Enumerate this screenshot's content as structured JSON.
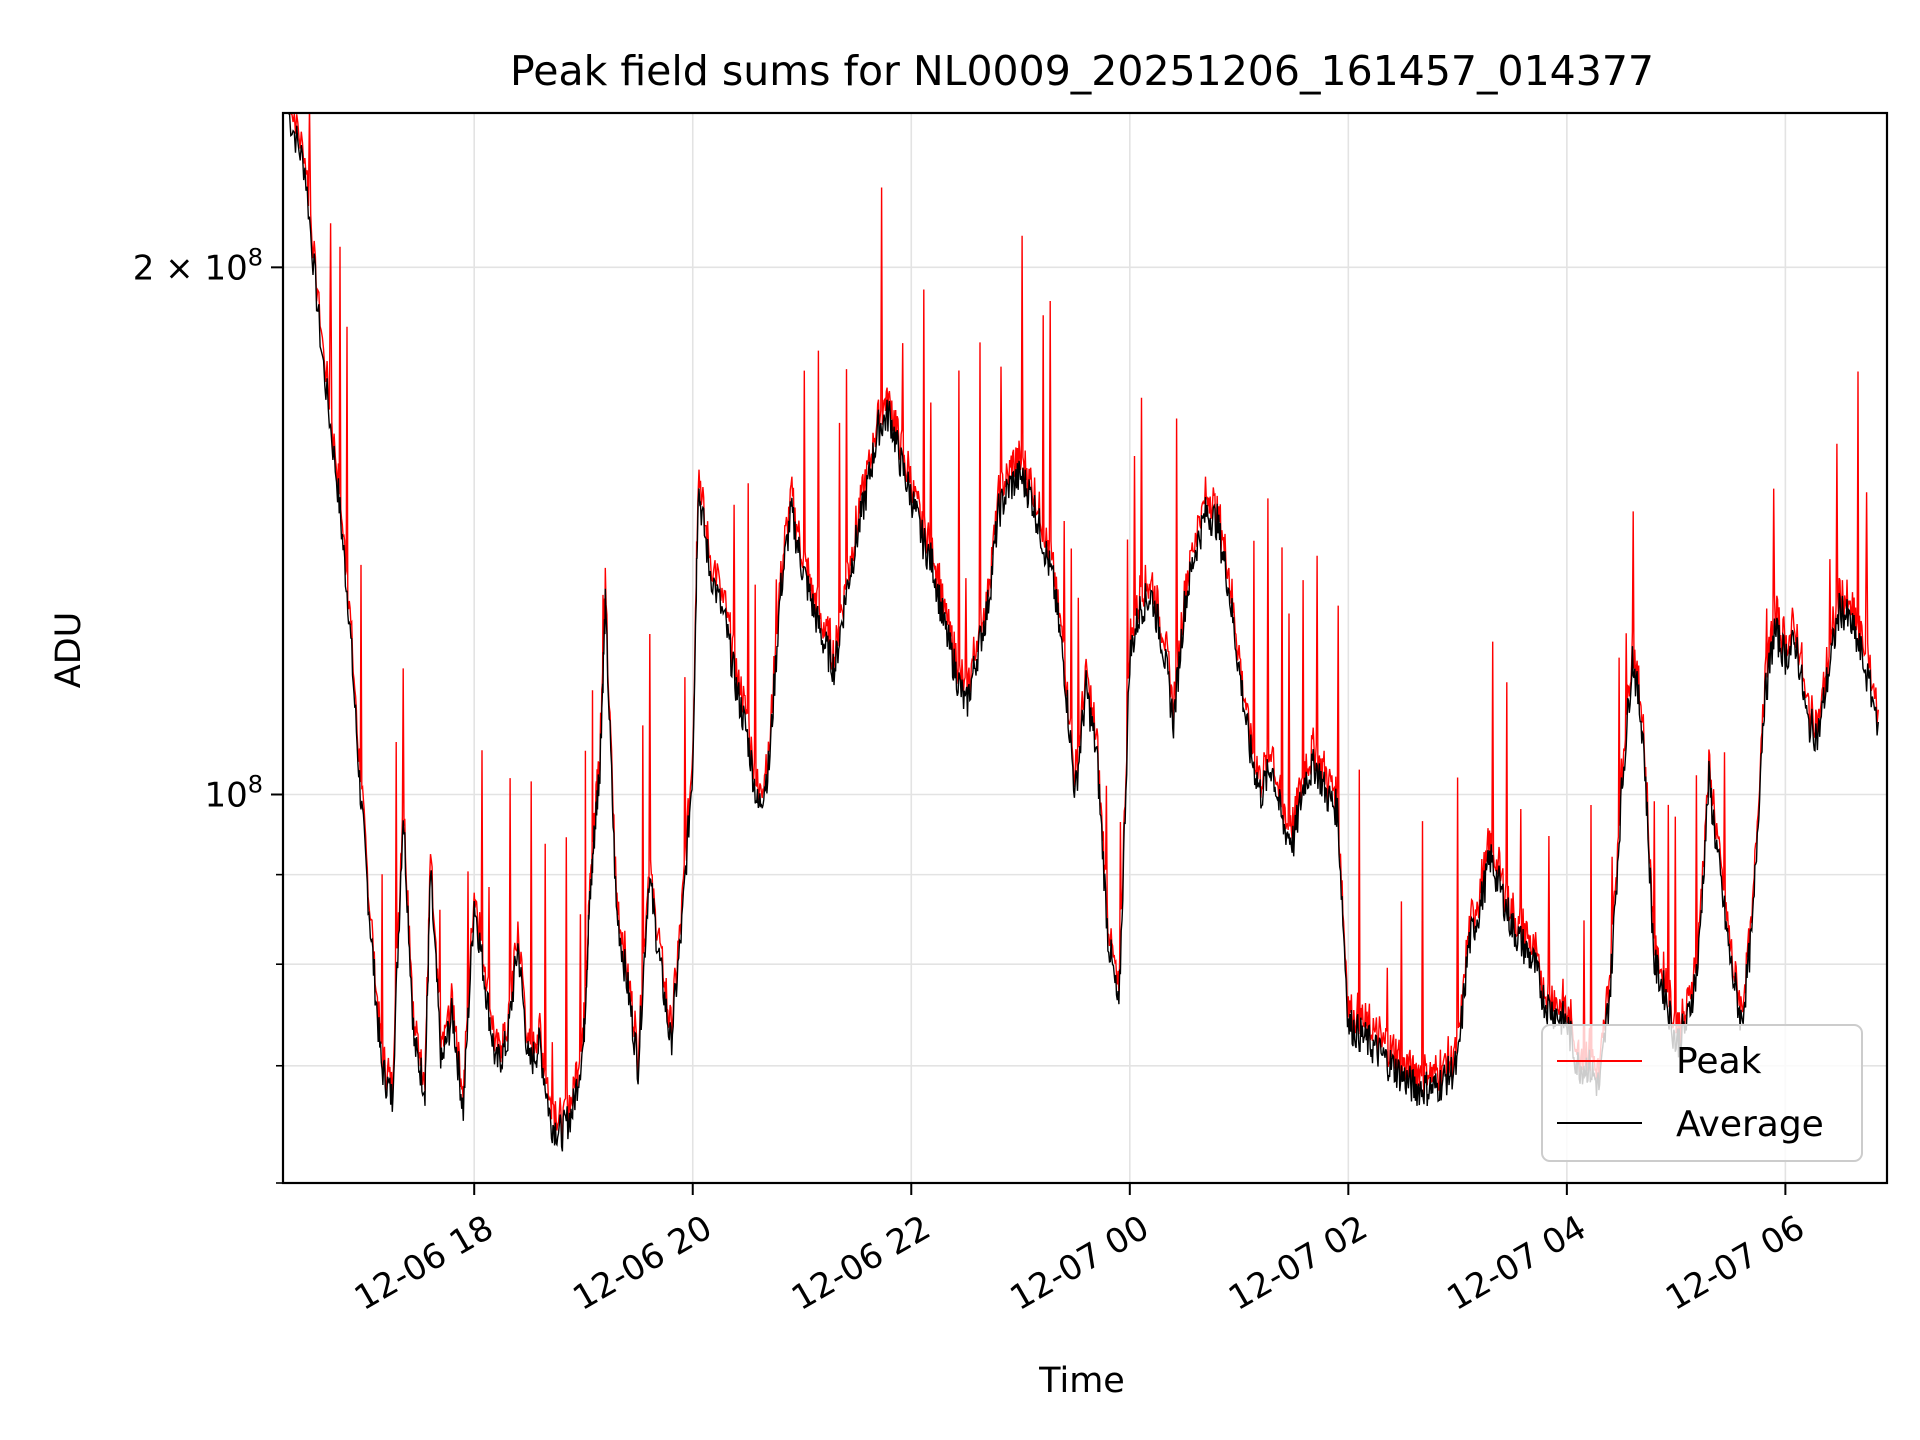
{
  "chart_data": {
    "type": "line",
    "title": "Peak field sums for NL0009_20251206_161457_014377",
    "xlabel": "Time",
    "ylabel": "ADU",
    "x_tick_labels": [
      "12-06 18",
      "12-06 20",
      "12-06 22",
      "12-07 00",
      "12-07 02",
      "12-07 04",
      "12-07 06"
    ],
    "x_tick_hours": [
      18,
      20,
      22,
      24,
      26,
      28,
      30
    ],
    "xlim_hours": [
      16.25,
      30.93
    ],
    "y_scale": "log",
    "ylim": [
      60000000,
      245000000
    ],
    "y_major_ticks": [
      {
        "value": 100000000,
        "label_base": "10",
        "label_exp": "8"
      },
      {
        "value": 200000000,
        "label_base": "2 × 10",
        "label_exp": "8"
      }
    ],
    "y_minor_ticks": [
      60000000,
      70000000,
      80000000,
      90000000
    ],
    "grid": true,
    "legend_position": "lower right",
    "series": [
      {
        "name": "Peak",
        "color": "#ff0000",
        "x_hours": [
          16.3,
          16.45,
          16.6,
          16.75,
          16.85,
          16.95,
          17.05,
          17.15,
          17.25,
          17.35,
          17.45,
          17.55,
          17.6,
          17.7,
          17.8,
          17.9,
          18.0,
          18.1,
          18.2,
          18.3,
          18.4,
          18.5,
          18.6,
          18.7,
          18.8,
          18.9,
          19.0,
          19.05,
          19.1,
          19.15,
          19.2,
          19.3,
          19.4,
          19.5,
          19.6,
          19.7,
          19.8,
          19.9,
          20.0,
          20.05,
          20.15,
          20.3,
          20.4,
          20.5,
          20.6,
          20.7,
          20.8,
          20.9,
          21.0,
          21.1,
          21.2,
          21.3,
          21.4,
          21.5,
          21.6,
          21.7,
          21.8,
          21.9,
          22.0,
          22.1,
          22.2,
          22.3,
          22.4,
          22.5,
          22.6,
          22.7,
          22.8,
          22.9,
          23.0,
          23.1,
          23.2,
          23.3,
          23.4,
          23.5,
          23.6,
          23.7,
          23.8,
          23.9,
          24.0,
          24.1,
          24.2,
          24.3,
          24.4,
          24.5,
          24.6,
          24.7,
          24.8,
          24.9,
          25.0,
          25.1,
          25.2,
          25.3,
          25.4,
          25.5,
          25.6,
          25.7,
          25.8,
          25.9,
          26.0,
          26.1,
          26.2,
          26.3,
          26.4,
          26.5,
          26.6,
          26.7,
          26.8,
          26.9,
          27.0,
          27.1,
          27.2,
          27.3,
          27.4,
          27.5,
          27.6,
          27.7,
          27.8,
          27.9,
          28.0,
          28.1,
          28.2,
          28.3,
          28.4,
          28.5,
          28.6,
          28.7,
          28.8,
          28.9,
          29.0,
          29.1,
          29.2,
          29.3,
          29.4,
          29.5,
          29.6,
          29.7,
          29.8,
          29.9,
          30.0,
          30.1,
          30.2,
          30.3,
          30.4,
          30.5,
          30.6,
          30.7,
          30.85
        ],
        "values": [
          245000000,
          228000000,
          180000000,
          150000000,
          128000000,
          102000000,
          84000000,
          70000000,
          67000000,
          98000000,
          72000000,
          68000000,
          90000000,
          70000000,
          75000000,
          66000000,
          87000000,
          78000000,
          70000000,
          72000000,
          82000000,
          70000000,
          72000000,
          65000000,
          64000000,
          66000000,
          72000000,
          85000000,
          95000000,
          104000000,
          128000000,
          86000000,
          78000000,
          70000000,
          90000000,
          80000000,
          72000000,
          84000000,
          104000000,
          150000000,
          135000000,
          125000000,
          115000000,
          108000000,
          98000000,
          104000000,
          130000000,
          145000000,
          135000000,
          128000000,
          122000000,
          118000000,
          130000000,
          140000000,
          150000000,
          162000000,
          165000000,
          155000000,
          148000000,
          140000000,
          135000000,
          125000000,
          118000000,
          112000000,
          120000000,
          128000000,
          145000000,
          150000000,
          152000000,
          148000000,
          140000000,
          132000000,
          118000000,
          100000000,
          115000000,
          105000000,
          83000000,
          75000000,
          120000000,
          128000000,
          130000000,
          122000000,
          110000000,
          128000000,
          138000000,
          145000000,
          143000000,
          132000000,
          118000000,
          106000000,
          100000000,
          104000000,
          96000000,
          94000000,
          102000000,
          104000000,
          100000000,
          98000000,
          74000000,
          73000000,
          72000000,
          71000000,
          70000000,
          69000000,
          68000000,
          68000000,
          68000000,
          69000000,
          70000000,
          82000000,
          86000000,
          92000000,
          88000000,
          84000000,
          82000000,
          80000000,
          76000000,
          75000000,
          74000000,
          70000000,
          70000000,
          68000000,
          78000000,
          100000000,
          120000000,
          108000000,
          80000000,
          77000000,
          72000000,
          74000000,
          80000000,
          102000000,
          90000000,
          80000000,
          74000000,
          84000000,
          112000000,
          124000000,
          120000000,
          122000000,
          110000000,
          108000000,
          118000000,
          128000000,
          125000000,
          120000000,
          110000000
        ],
        "note_spikes": true
      },
      {
        "name": "Average",
        "color": "#000000"
      }
    ]
  },
  "legend": {
    "peak_label": "Peak",
    "average_label": "Average"
  }
}
